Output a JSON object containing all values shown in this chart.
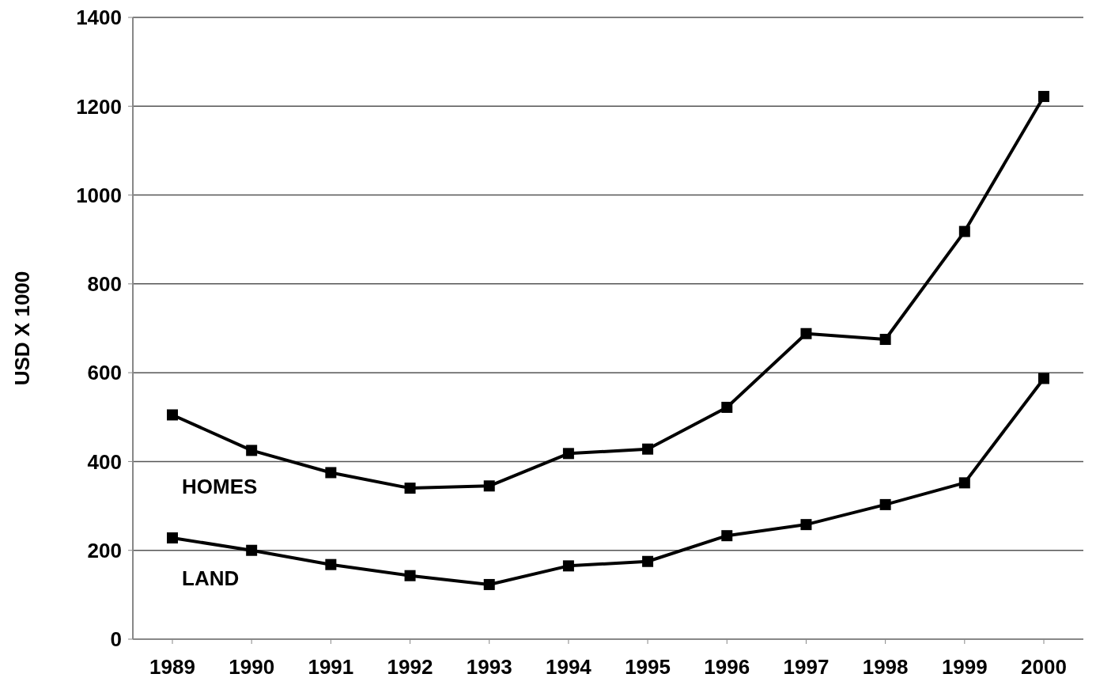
{
  "chart_data": {
    "type": "line",
    "ylabel": "USD X 1000",
    "categories": [
      "1989",
      "1990",
      "1991",
      "1992",
      "1993",
      "1994",
      "1995",
      "1996",
      "1997",
      "1998",
      "1999",
      "2000"
    ],
    "series": [
      {
        "name": "HOMES",
        "color": "#000000",
        "values": [
          505,
          425,
          375,
          340,
          345,
          418,
          428,
          522,
          688,
          675,
          918,
          1222
        ]
      },
      {
        "name": "LAND",
        "color": "#000000",
        "values": [
          228,
          200,
          168,
          143,
          123,
          165,
          175,
          233,
          258,
          303,
          352,
          587
        ]
      }
    ],
    "ylim": [
      0,
      1400
    ],
    "yticks": [
      0,
      200,
      400,
      600,
      800,
      1000,
      1200,
      1400
    ],
    "grid": "y",
    "marker": "square",
    "line_style": "solid"
  }
}
